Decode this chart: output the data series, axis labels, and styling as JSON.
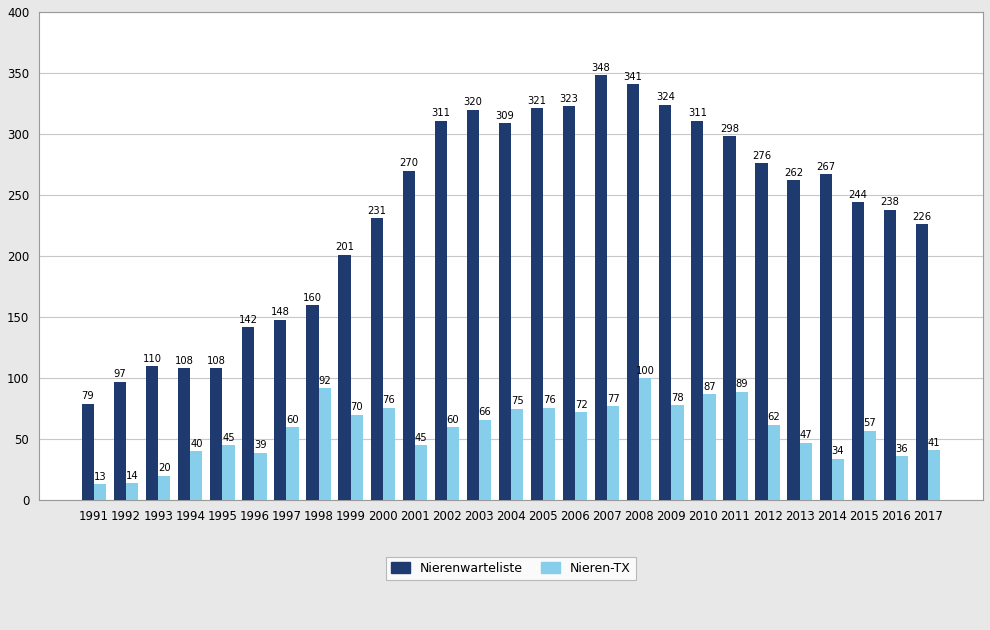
{
  "years": [
    1991,
    1992,
    1993,
    1994,
    1995,
    1996,
    1997,
    1998,
    1999,
    2000,
    2001,
    2002,
    2003,
    2004,
    2005,
    2006,
    2007,
    2008,
    2009,
    2010,
    2011,
    2012,
    2013,
    2014,
    2015,
    2016,
    2017
  ],
  "warteliste": [
    79,
    97,
    110,
    108,
    108,
    142,
    148,
    160,
    201,
    231,
    270,
    311,
    320,
    309,
    321,
    323,
    348,
    341,
    324,
    311,
    298,
    276,
    262,
    267,
    244,
    238,
    226
  ],
  "nieren_tx": [
    13,
    14,
    20,
    40,
    45,
    39,
    60,
    92,
    70,
    76,
    45,
    60,
    66,
    75,
    76,
    72,
    77,
    100,
    78,
    87,
    89,
    62,
    47,
    34,
    57,
    36,
    41
  ],
  "color_warteliste": "#1f3a6e",
  "color_nieren_tx": "#87ceeb",
  "legend_warteliste": "Nierenwarteliste",
  "legend_nieren_tx": "Nieren-TX",
  "ylim": [
    0,
    400
  ],
  "yticks": [
    0,
    50,
    100,
    150,
    200,
    250,
    300,
    350,
    400
  ],
  "bar_width": 0.38,
  "figure_background": "#e8e8e8",
  "plot_background": "#ffffff",
  "label_fontsize": 7.2,
  "tick_fontsize": 8.5,
  "legend_fontsize": 9,
  "grid_color": "#c8c8c8",
  "spine_color": "#999999"
}
